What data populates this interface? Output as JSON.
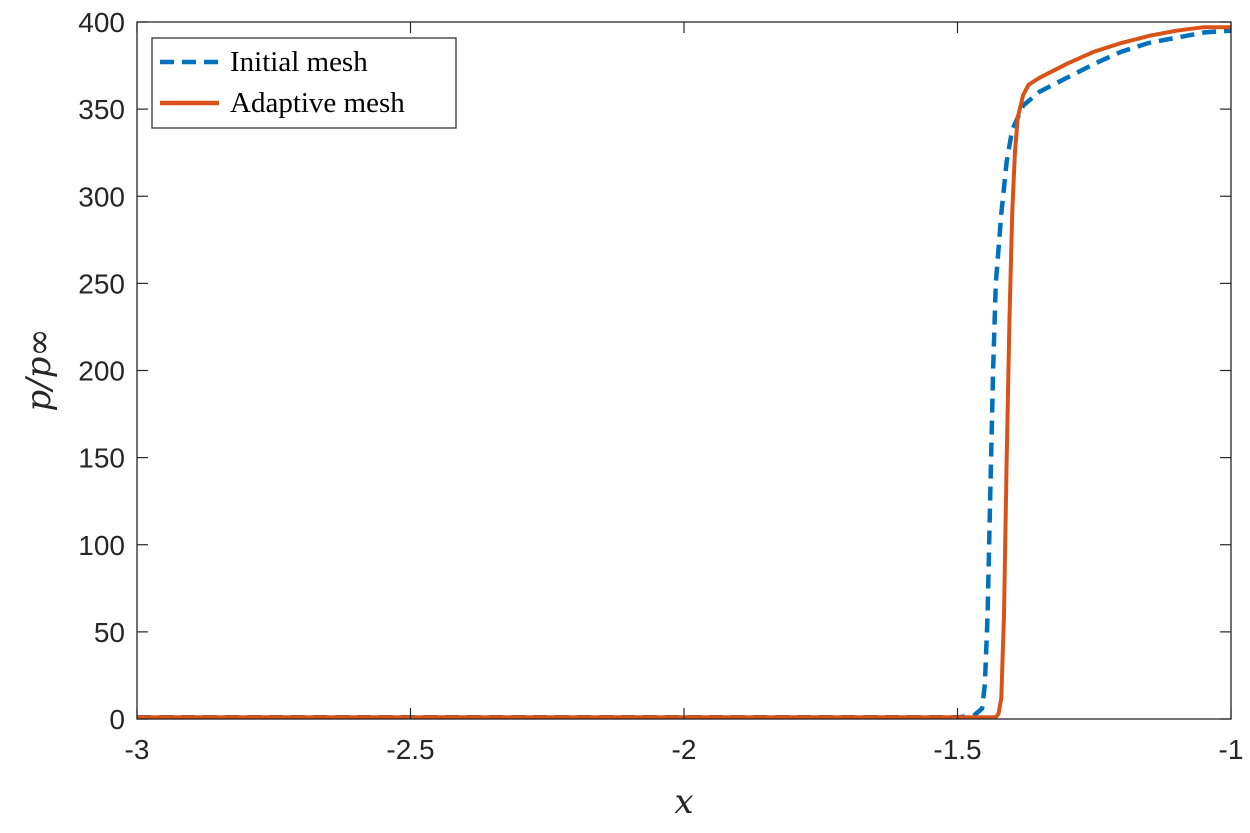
{
  "chart_data": {
    "type": "line",
    "title": "",
    "xlabel": "x",
    "ylabel": "p/p∞",
    "xlim": [
      -3,
      -1
    ],
    "ylim": [
      0,
      400
    ],
    "x_ticks": [
      -3,
      -2.5,
      -2,
      -1.5,
      -1
    ],
    "x_tick_labels": [
      "-3",
      "-2.5",
      "-2",
      "-1.5",
      "-1"
    ],
    "y_ticks": [
      0,
      50,
      100,
      150,
      200,
      250,
      300,
      350,
      400
    ],
    "y_tick_labels": [
      "0",
      "50",
      "100",
      "150",
      "200",
      "250",
      "300",
      "350",
      "400"
    ],
    "grid": false,
    "legend_position": "top-left",
    "series": [
      {
        "name": "Initial mesh",
        "color": "#0072BD",
        "style": "dashed",
        "points": [
          [
            -3.0,
            1
          ],
          [
            -2.5,
            1
          ],
          [
            -2.0,
            1
          ],
          [
            -1.6,
            1
          ],
          [
            -1.5,
            1
          ],
          [
            -1.47,
            2
          ],
          [
            -1.455,
            6
          ],
          [
            -1.45,
            20
          ],
          [
            -1.445,
            60
          ],
          [
            -1.44,
            130
          ],
          [
            -1.435,
            200
          ],
          [
            -1.43,
            250
          ],
          [
            -1.42,
            290
          ],
          [
            -1.41,
            320
          ],
          [
            -1.4,
            338
          ],
          [
            -1.38,
            352
          ],
          [
            -1.35,
            360
          ],
          [
            -1.3,
            368
          ],
          [
            -1.25,
            376
          ],
          [
            -1.2,
            383
          ],
          [
            -1.15,
            388
          ],
          [
            -1.1,
            391
          ],
          [
            -1.05,
            394
          ],
          [
            -1.0,
            395
          ]
        ]
      },
      {
        "name": "Adaptive mesh",
        "color": "#D95319",
        "style": "solid",
        "points": [
          [
            -3.0,
            1
          ],
          [
            -2.5,
            1
          ],
          [
            -2.0,
            1
          ],
          [
            -1.6,
            1
          ],
          [
            -1.5,
            1
          ],
          [
            -1.45,
            1
          ],
          [
            -1.43,
            1
          ],
          [
            -1.425,
            3
          ],
          [
            -1.42,
            12
          ],
          [
            -1.415,
            60
          ],
          [
            -1.41,
            150
          ],
          [
            -1.405,
            230
          ],
          [
            -1.4,
            290
          ],
          [
            -1.395,
            325
          ],
          [
            -1.39,
            345
          ],
          [
            -1.38,
            358
          ],
          [
            -1.37,
            364
          ],
          [
            -1.35,
            368
          ],
          [
            -1.3,
            376
          ],
          [
            -1.25,
            383
          ],
          [
            -1.2,
            388
          ],
          [
            -1.15,
            392
          ],
          [
            -1.1,
            395
          ],
          [
            -1.05,
            397
          ],
          [
            -1.0,
            397
          ]
        ]
      }
    ]
  }
}
